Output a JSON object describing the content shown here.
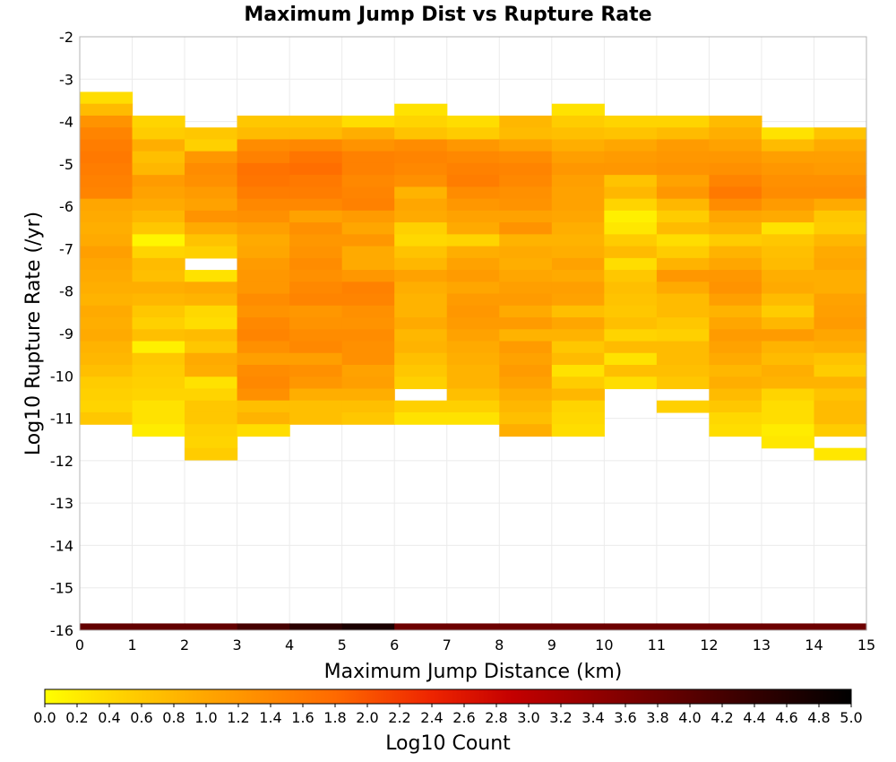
{
  "chart_data": {
    "type": "heatmap",
    "title": "Maximum Jump Dist vs Rupture Rate",
    "xlabel": "Maximum Jump Distance (km)",
    "ylabel": "Log10 Rupture Rate (/yr)",
    "xlim": [
      0,
      15
    ],
    "ylim": [
      -16,
      -2
    ],
    "x_ticks": [
      "0",
      "1",
      "2",
      "3",
      "4",
      "5",
      "6",
      "7",
      "8",
      "9",
      "10",
      "11",
      "12",
      "13",
      "14",
      "15"
    ],
    "y_ticks": [
      "-2",
      "-3",
      "-4",
      "-5",
      "-6",
      "-7",
      "-8",
      "-9",
      "-10",
      "-11",
      "-12",
      "-13",
      "-14",
      "-15",
      "-16"
    ],
    "x_bin_width": 1,
    "y_bin_width": 0.28,
    "grid": true,
    "colorbar": {
      "label": "Log10 Count",
      "range": [
        0,
        5
      ],
      "ticks": [
        "0.0",
        "0.2",
        "0.4",
        "0.6",
        "0.8",
        "1.0",
        "1.2",
        "1.4",
        "1.6",
        "1.8",
        "2.0",
        "2.2",
        "2.4",
        "2.6",
        "2.8",
        "3.0",
        "3.2",
        "3.4",
        "3.6",
        "3.8",
        "4.0",
        "4.2",
        "4.4",
        "4.6",
        "4.8",
        "5.0"
      ],
      "colors": [
        "#ffff00",
        "#ffa600",
        "#ff6a00",
        "#ee2400",
        "#b00000",
        "#5c0000",
        "#000000"
      ]
    },
    "columns": [
      {
        "x": 0.5,
        "y_top": -3.3,
        "values": [
          0.35,
          0.75,
          1.25,
          1.45,
          1.55,
          1.6,
          1.55,
          1.5,
          1.45,
          1.0,
          0.95,
          0.9,
          0.95,
          1.1,
          1.0,
          0.95,
          0.9,
          0.85,
          0.95,
          0.9,
          0.95,
          0.85,
          0.8,
          0.7,
          0.55,
          0.5,
          0.45,
          0.6
        ]
      },
      {
        "x": 1.5,
        "y_top": -3.86,
        "values": [
          0.45,
          0.55,
          0.9,
          0.7,
          0.8,
          1.15,
          1.05,
          0.95,
          0.8,
          0.6,
          0.1,
          0.45,
          0.75,
          0.7,
          0.9,
          0.8,
          0.6,
          0.5,
          0.7,
          0.15,
          0.6,
          0.55,
          0.5,
          0.45,
          0.3,
          0.3,
          0.2
        ]
      },
      {
        "x": 2.5,
        "y_top": -4.14,
        "values": [
          0.6,
          0.5,
          1.2,
          1.35,
          1.3,
          1.15,
          1.05,
          1.25,
          0.95,
          0.65,
          0.5,
          null,
          0.3,
          0.95,
          0.85,
          0.4,
          0.35,
          0.75,
          0.6,
          0.95,
          0.9,
          0.3,
          0.45,
          0.6,
          0.6,
          0.5,
          0.45,
          0.55
        ]
      },
      {
        "x": 3.5,
        "y_top": -3.86,
        "values": [
          0.6,
          0.75,
          1.35,
          1.5,
          1.7,
          1.65,
          1.55,
          1.4,
          1.3,
          1.1,
          0.95,
          1.0,
          1.15,
          1.2,
          1.2,
          1.35,
          1.25,
          1.4,
          1.45,
          1.3,
          1.1,
          1.35,
          1.4,
          1.3,
          0.7,
          0.85,
          0.35
        ]
      },
      {
        "x": 4.5,
        "y_top": -3.86,
        "values": [
          0.6,
          0.75,
          1.4,
          1.65,
          1.75,
          1.6,
          1.55,
          1.4,
          1.05,
          1.3,
          1.2,
          1.25,
          1.35,
          1.3,
          1.4,
          1.45,
          1.2,
          1.25,
          1.35,
          1.4,
          1.1,
          1.3,
          1.2,
          0.9,
          0.7,
          0.7
        ]
      },
      {
        "x": 5.5,
        "y_top": -3.86,
        "values": [
          0.35,
          0.9,
          1.25,
          1.5,
          1.5,
          1.4,
          1.45,
          1.5,
          1.15,
          1.0,
          1.2,
          0.95,
          0.95,
          1.2,
          1.5,
          1.45,
          1.3,
          1.25,
          1.35,
          1.3,
          1.3,
          1.05,
          1.1,
          0.9,
          0.7,
          0.6
        ]
      },
      {
        "x": 6.5,
        "y_top": -3.58,
        "values": [
          0.3,
          0.45,
          0.65,
          1.35,
          1.45,
          1.4,
          1.3,
          0.85,
          1.0,
          0.95,
          0.5,
          0.4,
          0.65,
          0.8,
          1.05,
          0.9,
          0.85,
          0.85,
          0.95,
          0.8,
          0.85,
          0.7,
          0.6,
          0.5,
          null,
          0.5,
          0.3
        ]
      },
      {
        "x": 7.5,
        "y_top": -3.86,
        "values": [
          0.35,
          0.55,
          1.2,
          1.4,
          1.5,
          1.55,
          1.35,
          1.2,
          1.05,
          0.95,
          0.45,
          0.9,
          1.05,
          1.15,
          1.0,
          1.15,
          1.2,
          1.15,
          1.05,
          0.95,
          0.9,
          0.85,
          0.85,
          0.7,
          0.5,
          0.3
        ]
      },
      {
        "x": 8.5,
        "y_top": -3.86,
        "values": [
          0.8,
          0.75,
          1.05,
          1.35,
          1.45,
          1.4,
          1.3,
          1.25,
          1.05,
          1.25,
          0.85,
          0.95,
          0.9,
          1.0,
          1.1,
          1.15,
          0.95,
          1.15,
          0.85,
          1.15,
          1.05,
          1.15,
          1.05,
          0.9,
          0.8,
          0.7,
          0.9
        ]
      },
      {
        "x": 9.5,
        "y_top": -3.58,
        "values": [
          0.3,
          0.55,
          0.7,
          0.9,
          1.1,
          1.2,
          1.1,
          1.05,
          1.05,
          1.0,
          0.9,
          0.85,
          0.9,
          1.05,
          0.95,
          1.1,
          1.05,
          0.7,
          1.0,
          0.85,
          0.6,
          0.75,
          0.3,
          0.55,
          0.8,
          0.45,
          0.4,
          0.35
        ]
      },
      {
        "x": 10.5,
        "y_top": -3.86,
        "values": [
          0.45,
          0.65,
          1.0,
          1.15,
          1.2,
          0.65,
          0.8,
          0.45,
          0.15,
          0.25,
          0.55,
          0.75,
          0.35,
          0.6,
          0.7,
          0.65,
          0.6,
          0.7,
          0.45,
          0.75,
          0.3,
          0.7,
          0.35
        ]
      },
      {
        "x": 11.5,
        "y_top": -3.86,
        "values": [
          0.45,
          0.75,
          1.15,
          1.2,
          1.25,
          1.05,
          1.2,
          0.8,
          0.55,
          0.75,
          0.35,
          0.55,
          0.85,
          1.2,
          0.95,
          0.75,
          0.75,
          0.6,
          0.5,
          0.75,
          0.75,
          0.7,
          0.6,
          null,
          0.5
        ]
      },
      {
        "x": 12.5,
        "y_top": -3.86,
        "values": [
          0.75,
          0.9,
          1.05,
          1.2,
          1.3,
          1.45,
          1.6,
          1.35,
          1.0,
          0.85,
          0.55,
          0.85,
          1.0,
          1.2,
          1.25,
          1.1,
          0.85,
          1.0,
          1.15,
          1.05,
          0.95,
          0.8,
          0.9,
          0.75,
          0.6,
          0.4,
          0.35
        ]
      },
      {
        "x": 13.5,
        "y_top": -4.14,
        "values": [
          0.3,
          0.75,
          1.1,
          1.2,
          1.3,
          1.35,
          1.15,
          0.95,
          0.3,
          0.6,
          0.7,
          0.75,
          0.9,
          0.95,
          0.75,
          0.55,
          0.8,
          1.15,
          0.85,
          0.75,
          0.9,
          0.85,
          0.45,
          0.35,
          0.35,
          0.2,
          0.25
        ]
      },
      {
        "x": 14.5,
        "y_top": -4.14,
        "values": [
          0.65,
          0.95,
          1.1,
          1.15,
          1.3,
          1.35,
          0.95,
          0.6,
          0.55,
          0.8,
          0.95,
          1.0,
          0.9,
          0.9,
          1.05,
          1.1,
          1.15,
          1.0,
          0.9,
          0.65,
          0.55,
          0.85,
          0.65,
          0.75,
          0.75,
          0.55,
          null,
          0.25
        ]
      }
    ],
    "bottom_row": {
      "y": -16,
      "values": [
        3.9,
        3.9,
        3.9,
        4.2,
        4.5,
        4.7,
        3.8,
        3.8,
        3.8,
        3.8,
        3.8,
        3.8,
        3.8,
        3.8,
        3.8
      ]
    }
  }
}
